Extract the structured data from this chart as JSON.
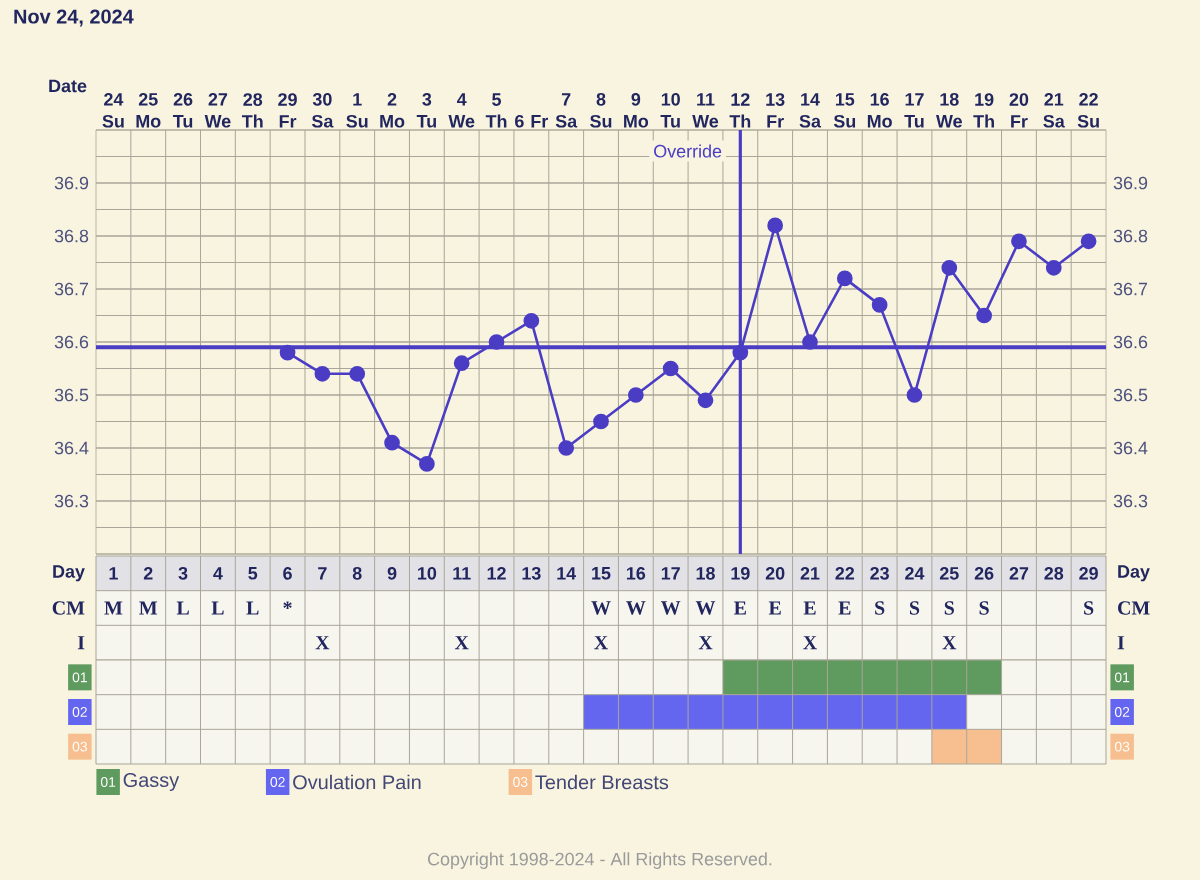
{
  "chart_data": [
    {
      "type": "line",
      "title": "Nov 24, 2024",
      "xlabel": "Date",
      "categories": [
        "24 Su",
        "25 Mo",
        "26 Tu",
        "27 We",
        "28 Th",
        "29 Fr",
        "30 Sa",
        "1 Su",
        "2 Mo",
        "3 Tu",
        "4 We",
        "5 Th",
        "6 Fr",
        "7 Sa",
        "8 Su",
        "9 Mo",
        "10 Tu",
        "11 We",
        "12 Th",
        "13 Fr",
        "14 Sa",
        "15 Su",
        "16 Mo",
        "17 Tu",
        "18 We",
        "19 Th",
        "20 Fr",
        "21 Sa",
        "22 Su"
      ],
      "series": [
        {
          "color": "#4a3dc4",
          "values": [
            null,
            null,
            null,
            null,
            null,
            36.58,
            36.54,
            36.54,
            36.41,
            36.37,
            36.56,
            36.6,
            36.64,
            36.4,
            36.45,
            36.5,
            36.55,
            36.49,
            36.58,
            36.82,
            36.6,
            36.72,
            36.67,
            36.5,
            36.74,
            36.65,
            36.79,
            36.74,
            36.79
          ]
        }
      ],
      "ylim": [
        36.2,
        37.0
      ],
      "yticks": [
        36.3,
        36.4,
        36.5,
        36.6,
        36.7,
        36.8,
        36.9
      ],
      "y2lim": [
        36.2,
        37.0
      ],
      "y2ticks": [
        36.3,
        36.4,
        36.5,
        36.6,
        36.7,
        36.8,
        36.9
      ],
      "grid": true,
      "marker": "circle",
      "ref_lines": [
        {
          "axis": "y",
          "value": 36.59,
          "color": "#4a3dc4"
        },
        {
          "axis": "x",
          "value": "12 Th",
          "label": "Override",
          "color": "#4a3dc4"
        }
      ]
    },
    {
      "type": "heatmap",
      "xlabel": "Day",
      "categories": [
        "1",
        "2",
        "3",
        "4",
        "5",
        "6",
        "7",
        "8",
        "9",
        "10",
        "11",
        "12",
        "13",
        "14",
        "15",
        "16",
        "17",
        "18",
        "19",
        "20",
        "21",
        "22",
        "23",
        "24",
        "25",
        "26",
        "27",
        "28",
        "29"
      ],
      "y_categories": [
        "CM",
        "I"
      ],
      "y2_categories": [
        "CM",
        "I"
      ],
      "cells": [
        [
          null,
          null,
          null,
          null,
          null,
          null,
          null,
          null,
          null,
          null,
          null,
          null,
          null,
          null,
          null,
          null,
          null,
          null,
          null,
          null,
          null,
          null,
          null,
          null,
          null,
          null,
          null,
          null,
          null
        ],
        [
          null,
          null,
          null,
          null,
          null,
          null,
          null,
          null,
          null,
          null,
          null,
          null,
          null,
          null,
          null,
          null,
          null,
          null,
          null,
          null,
          null,
          null,
          null,
          null,
          null,
          null,
          null,
          null,
          null
        ]
      ],
      "cell_labels": [
        [
          "M",
          "M",
          "L",
          "L",
          "L",
          "*",
          null,
          null,
          null,
          null,
          null,
          null,
          null,
          null,
          "W",
          "W",
          "W",
          "W",
          "E",
          "E",
          "E",
          "E",
          "S",
          "S",
          "S",
          "S",
          null,
          null,
          "S"
        ],
        [
          null,
          null,
          null,
          null,
          null,
          null,
          "X",
          null,
          null,
          null,
          "X",
          null,
          null,
          null,
          "X",
          null,
          null,
          "X",
          null,
          null,
          "X",
          null,
          null,
          null,
          "X",
          null,
          null,
          null,
          null
        ]
      ]
    },
    {
      "type": "bar",
      "orientation": "horizontal",
      "categories": [
        "01",
        "02",
        "03"
      ],
      "y2_categories": [
        "01",
        "02",
        "03"
      ],
      "xlim": [
        0.5,
        29.5
      ],
      "xticks": [
        1,
        2,
        3,
        4,
        5,
        6,
        7,
        8,
        9,
        10,
        11,
        12,
        13,
        14,
        15,
        16,
        17,
        18,
        19,
        20,
        21,
        22,
        23,
        24,
        25,
        26,
        27,
        28,
        29
      ],
      "tick_labels": "y",
      "series": [
        {
          "name": "Gassy",
          "color": "#5f9a5f",
          "base": [
            18.5,
            null,
            null
          ],
          "values": [
            8,
            null,
            null
          ]
        },
        {
          "name": "Ovulation Pain",
          "color": "#6466f0",
          "base": [
            null,
            14.5,
            null
          ],
          "values": [
            null,
            11,
            null
          ]
        },
        {
          "name": "Tender Breasts",
          "color": "#f7bf8f",
          "base": [
            null,
            null,
            24.5
          ],
          "values": [
            null,
            null,
            2
          ]
        }
      ],
      "grid": true,
      "legend": "bottom",
      "annotations": [
        "Copyright 1998-2024 - All Rights Reserved."
      ]
    }
  ]
}
